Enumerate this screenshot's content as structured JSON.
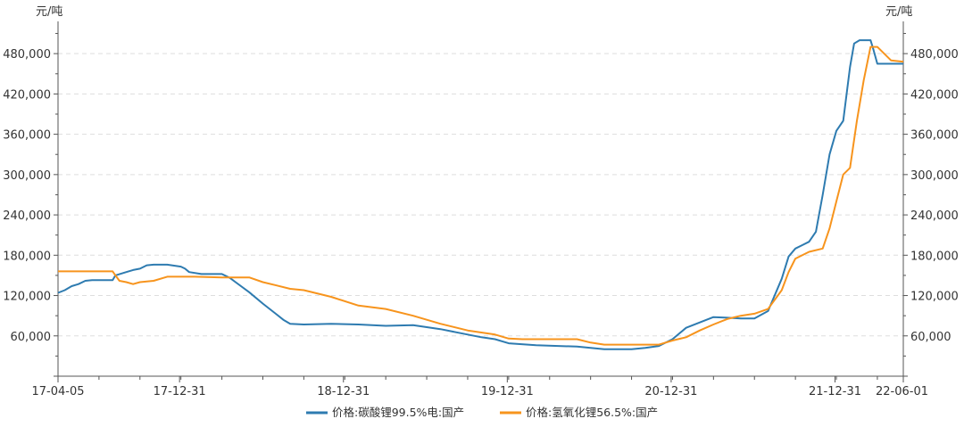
{
  "chart_data": {
    "type": "line",
    "title": "",
    "unit_left": "元/吨",
    "unit_right": "元/吨",
    "ylim": [
      0,
      520000
    ],
    "yticks": [
      60000,
      120000,
      180000,
      240000,
      300000,
      360000,
      420000,
      480000
    ],
    "ytick_labels": [
      "60,000",
      "120,000",
      "180,000",
      "240,000",
      "300,000",
      "360,000",
      "420,000",
      "480,000"
    ],
    "x_start": "17-04-05",
    "x_end": "22-06-01",
    "xtick_labels": [
      "17-04-05",
      "17-12-31",
      "18-12-31",
      "19-12-31",
      "20-12-31",
      "21-12-31",
      "22-06-01"
    ],
    "xtick_positions_months": [
      0,
      8.9,
      20.9,
      32.9,
      44.9,
      56.9,
      61.9
    ],
    "x_total_months": 61.9,
    "grid": true,
    "legend_position": "bottom",
    "colors": {
      "series1": "#2e7bb0",
      "series2": "#f7941d",
      "axis": "#555555",
      "grid": "#dddddd"
    },
    "series": [
      {
        "name": "价格:碳酸锂99.5%电:国产",
        "x": [
          0,
          0.5,
          1,
          1.5,
          2,
          2.5,
          3,
          4,
          4.2,
          5,
          5.5,
          6,
          6.5,
          7,
          8,
          9,
          9.3,
          9.6,
          10.5,
          12,
          12.6,
          13,
          14,
          15,
          16,
          16.5,
          17,
          18,
          20,
          22,
          24,
          26,
          28,
          30,
          31,
          32,
          33,
          35,
          38,
          40,
          42,
          43,
          44,
          45,
          46,
          47,
          48,
          49,
          50,
          51,
          52,
          53,
          53.5,
          54,
          54.5,
          55,
          55.5,
          56,
          56.5,
          57,
          57.5,
          58,
          58.3,
          58.7,
          59.5,
          59.7,
          60,
          61,
          61.9
        ],
        "values": [
          124000,
          128000,
          134000,
          137000,
          142000,
          143000,
          143000,
          143000,
          150000,
          155000,
          158000,
          160000,
          165000,
          166000,
          166000,
          163000,
          160000,
          155000,
          152000,
          152000,
          146000,
          140000,
          125000,
          108000,
          92000,
          84000,
          78000,
          77000,
          78000,
          77000,
          75000,
          76000,
          70000,
          62000,
          58000,
          55000,
          49000,
          46000,
          44000,
          40000,
          40000,
          42000,
          45000,
          55000,
          72000,
          80000,
          88000,
          87000,
          86000,
          86000,
          97000,
          145000,
          178000,
          190000,
          195000,
          200000,
          215000,
          270000,
          330000,
          365000,
          380000,
          460000,
          495000,
          500000,
          500000,
          487000,
          465000,
          465000,
          465000
        ]
      },
      {
        "name": "价格:氢氧化锂56.5%:国产",
        "x": [
          0,
          2,
          4,
          4.2,
          4.5,
          5,
          5.5,
          6,
          7,
          8,
          10,
          12,
          13,
          14,
          15,
          16,
          17,
          18,
          20,
          22,
          24,
          26,
          28,
          30,
          32,
          33,
          34,
          36,
          38,
          39,
          40,
          42,
          44,
          45,
          46,
          47,
          48,
          49,
          50,
          51,
          52,
          53,
          53.5,
          54,
          55,
          56,
          56.5,
          57,
          57.5,
          58,
          58.5,
          59,
          59.5,
          60,
          61,
          61.9
        ],
        "values": [
          156000,
          156000,
          156000,
          150000,
          142000,
          140000,
          137000,
          140000,
          142000,
          148000,
          148000,
          147000,
          147000,
          147000,
          140000,
          135000,
          130000,
          128000,
          118000,
          105000,
          100000,
          90000,
          78000,
          68000,
          62000,
          56000,
          55000,
          55000,
          55000,
          50000,
          47000,
          47000,
          47000,
          53000,
          58000,
          68000,
          77000,
          85000,
          90000,
          93000,
          100000,
          128000,
          155000,
          175000,
          185000,
          190000,
          220000,
          260000,
          300000,
          310000,
          380000,
          440000,
          490000,
          490000,
          470000,
          468000
        ]
      }
    ]
  }
}
